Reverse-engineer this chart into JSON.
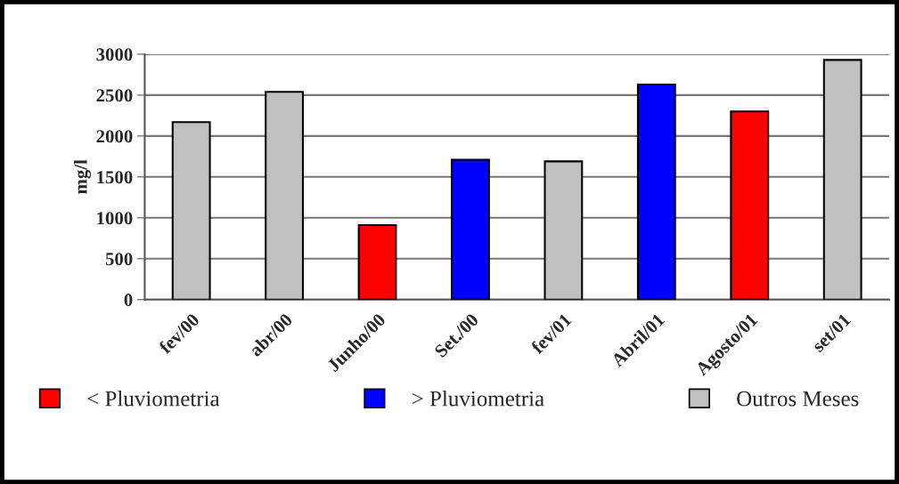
{
  "chart_data": {
    "type": "bar",
    "ylabel": "mg/l",
    "categories": [
      "fev/00",
      "abr/00",
      "Junho/00",
      "Set./00",
      "fev/01",
      "Abril/01",
      "Agosto/01",
      "set/01"
    ],
    "series": [
      {
        "name": "< Pluviometria",
        "color": "#ff0000",
        "values": [
          null,
          null,
          910,
          null,
          null,
          null,
          2300,
          null
        ]
      },
      {
        "name": "> Pluviometria",
        "color": "#0000ff",
        "values": [
          null,
          null,
          null,
          1710,
          null,
          2630,
          null,
          null
        ]
      },
      {
        "name": "Outros Meses",
        "color": "#c0c0c0",
        "values": [
          2170,
          2540,
          null,
          null,
          1690,
          null,
          null,
          2930
        ]
      }
    ],
    "ylim": [
      0,
      3000
    ],
    "yticks": [
      0,
      500,
      1000,
      1500,
      2000,
      2500,
      3000
    ],
    "grid": "y",
    "legend": "bottom"
  }
}
